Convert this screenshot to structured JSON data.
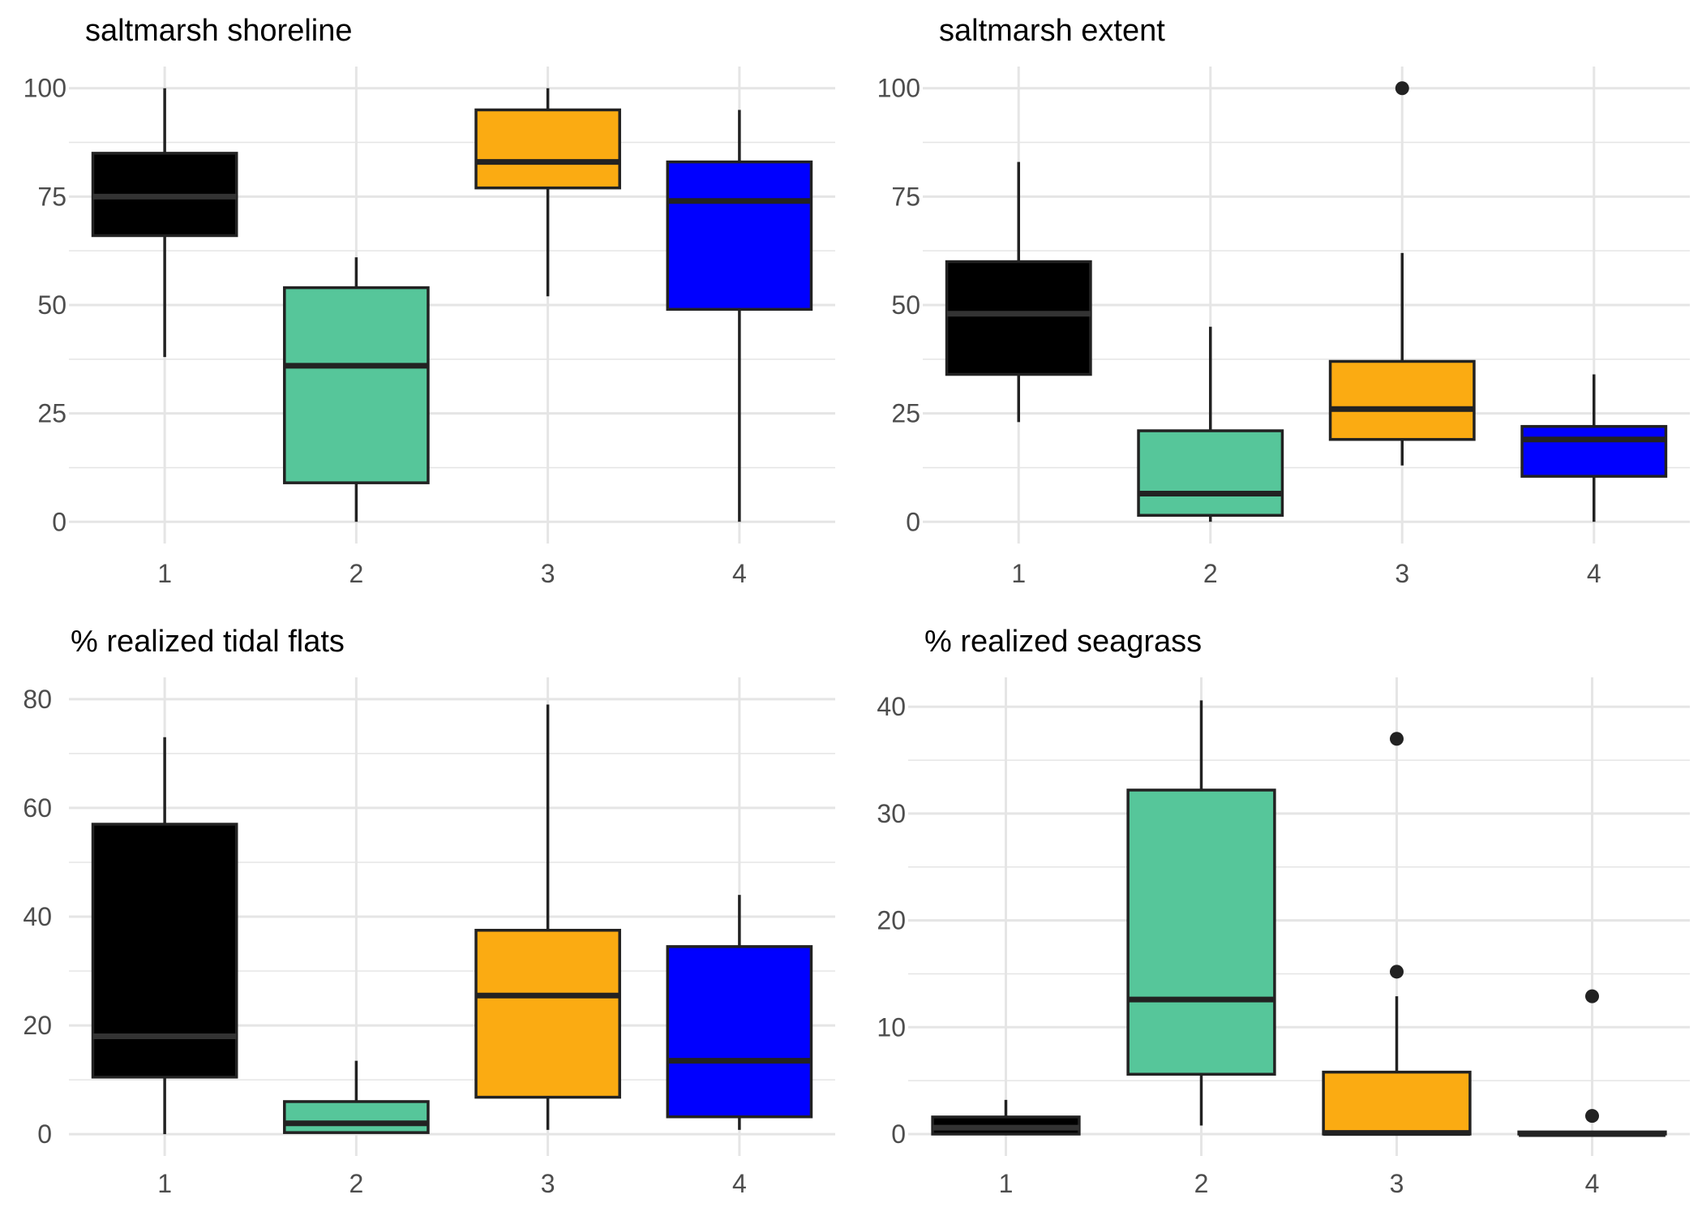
{
  "colors": {
    "groups": [
      "#000000",
      "#56c69a",
      "#fbab12",
      "#0000ff"
    ],
    "outline": "#222222",
    "median_dark_fill": "#333333",
    "grid": "#e5e5e5",
    "tick_text": "#4d4d4d"
  },
  "chart_data": [
    {
      "type": "box",
      "title": "saltmarsh shoreline",
      "xlabel": "",
      "ylabel": "",
      "categories": [
        "1",
        "2",
        "3",
        "4"
      ],
      "ylim": [
        -5,
        105
      ],
      "yticks": [
        0,
        25,
        50,
        75,
        100
      ],
      "grid": true,
      "legend": "none",
      "boxes": [
        {
          "category": "1",
          "whisker_low": 38,
          "q1": 66,
          "median": 75,
          "q3": 85,
          "whisker_high": 100,
          "outliers": []
        },
        {
          "category": "2",
          "whisker_low": 0,
          "q1": 9,
          "median": 36,
          "q3": 54,
          "whisker_high": 61,
          "outliers": []
        },
        {
          "category": "3",
          "whisker_low": 52,
          "q1": 77,
          "median": 83,
          "q3": 95,
          "whisker_high": 100,
          "outliers": []
        },
        {
          "category": "4",
          "whisker_low": 0,
          "q1": 49,
          "median": 74,
          "q3": 83,
          "whisker_high": 95,
          "outliers": []
        }
      ]
    },
    {
      "type": "box",
      "title": "saltmarsh extent",
      "xlabel": "",
      "ylabel": "",
      "categories": [
        "1",
        "2",
        "3",
        "4"
      ],
      "ylim": [
        -5,
        105
      ],
      "yticks": [
        0,
        25,
        50,
        75,
        100
      ],
      "grid": true,
      "legend": "none",
      "boxes": [
        {
          "category": "1",
          "whisker_low": 23,
          "q1": 34,
          "median": 48,
          "q3": 60,
          "whisker_high": 83,
          "outliers": []
        },
        {
          "category": "2",
          "whisker_low": 0,
          "q1": 1.5,
          "median": 6.5,
          "q3": 21,
          "whisker_high": 45,
          "outliers": []
        },
        {
          "category": "3",
          "whisker_low": 13,
          "q1": 19,
          "median": 26,
          "q3": 37,
          "whisker_high": 62,
          "outliers": [
            100
          ]
        },
        {
          "category": "4",
          "whisker_low": 0,
          "q1": 10.5,
          "median": 19,
          "q3": 22,
          "whisker_high": 34,
          "outliers": []
        }
      ]
    },
    {
      "type": "box",
      "title": "% realized tidal flats",
      "xlabel": "",
      "ylabel": "",
      "categories": [
        "1",
        "2",
        "3",
        "4"
      ],
      "ylim": [
        -4,
        84
      ],
      "yticks": [
        0,
        20,
        40,
        60,
        80
      ],
      "grid": true,
      "legend": "none",
      "boxes": [
        {
          "category": "1",
          "whisker_low": 0,
          "q1": 10.5,
          "median": 18,
          "q3": 57,
          "whisker_high": 73,
          "outliers": []
        },
        {
          "category": "2",
          "whisker_low": 0.2,
          "q1": 0.3,
          "median": 2,
          "q3": 6,
          "whisker_high": 13.5,
          "outliers": []
        },
        {
          "category": "3",
          "whisker_low": 0.8,
          "q1": 6.8,
          "median": 25.5,
          "q3": 37.5,
          "whisker_high": 79,
          "outliers": []
        },
        {
          "category": "4",
          "whisker_low": 0.8,
          "q1": 3.2,
          "median": 13.5,
          "q3": 34.5,
          "whisker_high": 44,
          "outliers": []
        }
      ]
    },
    {
      "type": "box",
      "title": "% realized seagrass",
      "xlabel": "",
      "ylabel": "",
      "categories": [
        "1",
        "2",
        "3",
        "4"
      ],
      "ylim": [
        -2.05,
        42.75
      ],
      "yticks": [
        0,
        10,
        20,
        30,
        40
      ],
      "grid": true,
      "legend": "none",
      "boxes": [
        {
          "category": "1",
          "whisker_low": 0,
          "q1": 0,
          "median": 0.6,
          "q3": 1.6,
          "whisker_high": 3.2,
          "outliers": []
        },
        {
          "category": "2",
          "whisker_low": 0.8,
          "q1": 5.6,
          "median": 12.6,
          "q3": 32.2,
          "whisker_high": 40.6,
          "outliers": []
        },
        {
          "category": "3",
          "whisker_low": 0,
          "q1": 0,
          "median": 0.1,
          "q3": 5.8,
          "whisker_high": 12.9,
          "outliers": [
            15.2,
            37
          ]
        },
        {
          "category": "4",
          "whisker_low": 0,
          "q1": 0,
          "median": 0,
          "q3": 0.2,
          "whisker_high": 0.2,
          "outliers": [
            1.7,
            12.9
          ]
        }
      ]
    }
  ]
}
